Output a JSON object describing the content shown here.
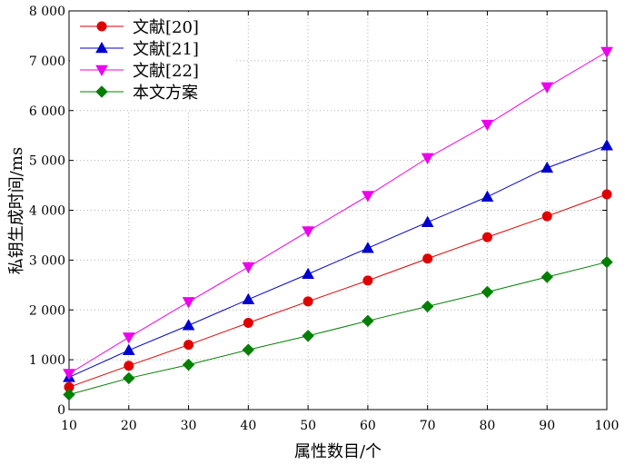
{
  "chart_data": {
    "type": "line",
    "xlabel": "属性数目/个",
    "ylabel": "私钥生成时间/ms",
    "xlim": [
      10,
      100
    ],
    "ylim": [
      0,
      8000
    ],
    "x_ticks": [
      "10",
      "20",
      "30",
      "40",
      "50",
      "60",
      "70",
      "80",
      "90",
      "100"
    ],
    "y_ticks": [
      "0",
      "1 000",
      "2 000",
      "3 000",
      "4 000",
      "5 000",
      "6 000",
      "7 000",
      "8 000"
    ],
    "grid": true,
    "legend_position": "top-left",
    "x": [
      10,
      20,
      30,
      40,
      50,
      60,
      70,
      80,
      90,
      100
    ],
    "series": [
      {
        "name": "文献[20]",
        "color": "#e00000",
        "marker": "circle",
        "values": [
          450,
          880,
          1300,
          1740,
          2170,
          2590,
          3030,
          3460,
          3880,
          4320
        ]
      },
      {
        "name": "文献[21]",
        "color": "#0000cc",
        "marker": "triangle-up",
        "values": [
          650,
          1190,
          1690,
          2210,
          2720,
          3240,
          3760,
          4270,
          4850,
          5300
        ]
      },
      {
        "name": "文献[22]",
        "color": "#ee00ee",
        "marker": "triangle-down",
        "values": [
          720,
          1450,
          2160,
          2860,
          3580,
          4290,
          5050,
          5720,
          6470,
          7180
        ]
      },
      {
        "name": "本文方案",
        "color": "#008000",
        "marker": "diamond",
        "values": [
          300,
          630,
          900,
          1200,
          1480,
          1780,
          2070,
          2360,
          2660,
          2960
        ]
      }
    ]
  }
}
